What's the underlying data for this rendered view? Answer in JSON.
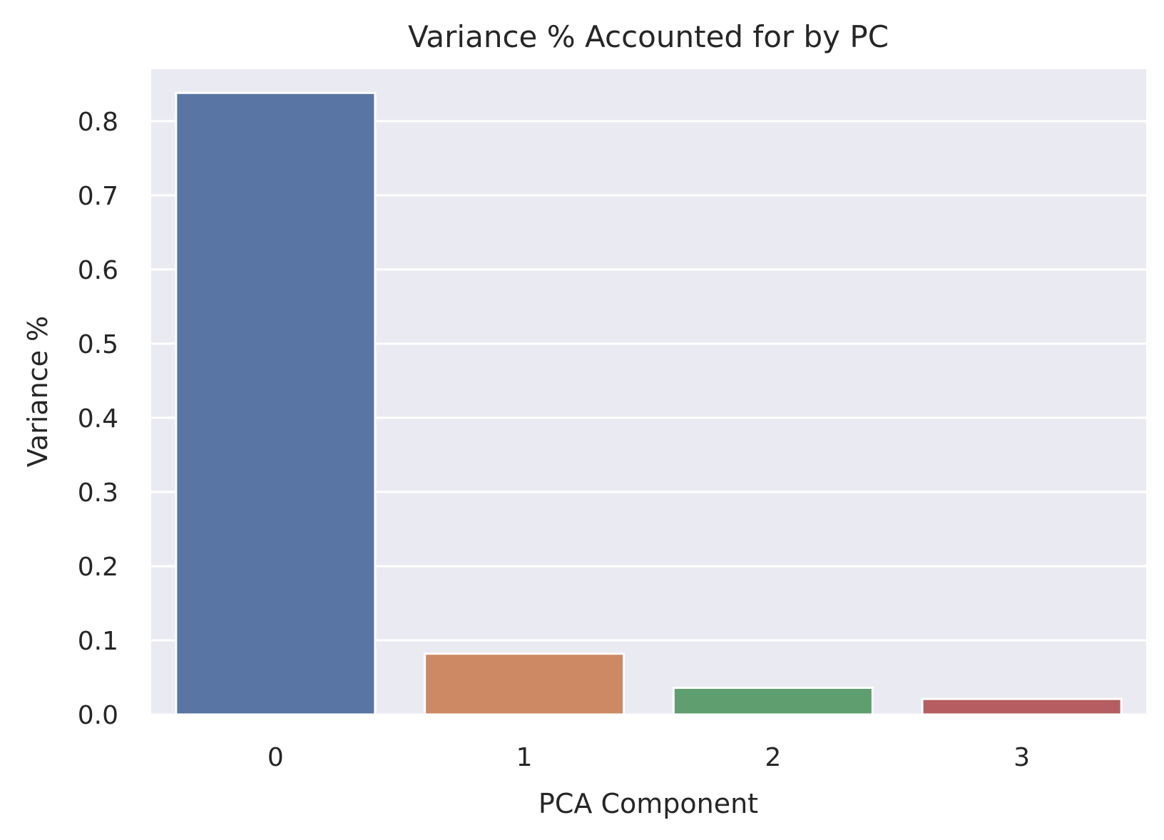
{
  "chart_data": {
    "type": "bar",
    "title": "Variance % Accounted for by PC",
    "xlabel": "PCA Component",
    "ylabel": "Variance %",
    "categories": [
      "0",
      "1",
      "2",
      "3"
    ],
    "values": [
      0.838,
      0.082,
      0.036,
      0.021
    ],
    "ylim": [
      0,
      0.87
    ],
    "yticks": [
      0.0,
      0.1,
      0.2,
      0.3,
      0.4,
      0.5,
      0.6,
      0.7,
      0.8
    ],
    "ytick_labels": [
      "0.0",
      "0.1",
      "0.2",
      "0.3",
      "0.4",
      "0.5",
      "0.6",
      "0.7",
      "0.8"
    ],
    "colors": [
      "#5975a4",
      "#cc8963",
      "#5f9e6e",
      "#b55d60"
    ],
    "plot_background": "#eaeaf2",
    "grid": true,
    "grid_axis": "y"
  }
}
